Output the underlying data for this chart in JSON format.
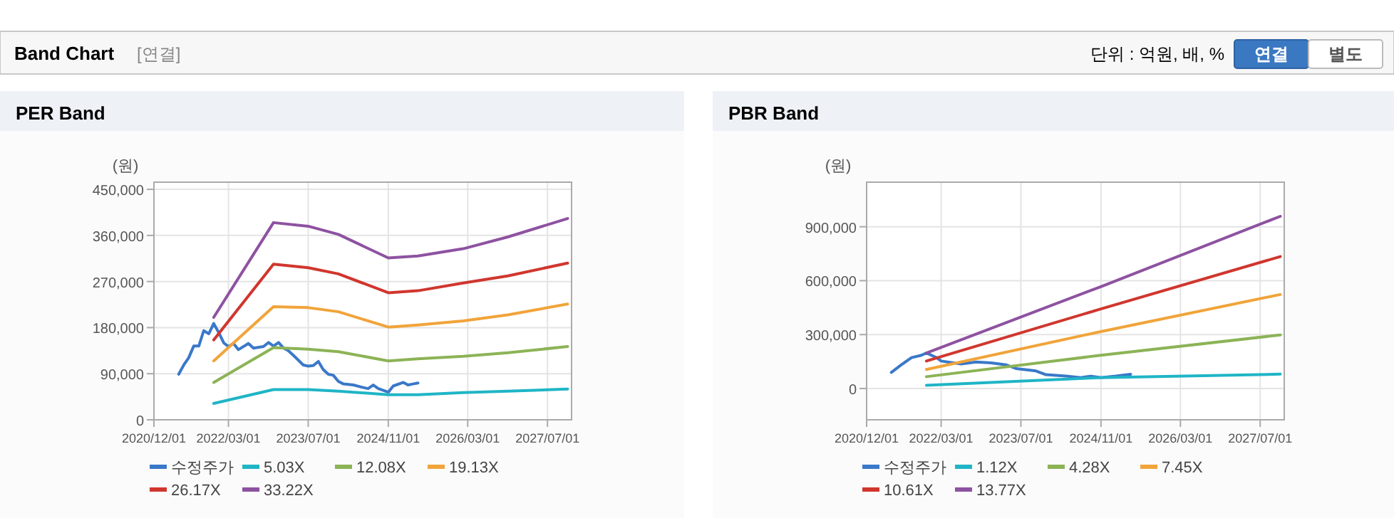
{
  "chart_data": [
    {
      "type": "other",
      "title": "Band Chart",
      "annotations": [
        "[연결]",
        "단위 : 억원, 배, %",
        "연결",
        "별도"
      ]
    },
    {
      "type": "line",
      "title": "PER Band",
      "ylabel": "(원)",
      "grid": true,
      "legend": "bottom",
      "marker": "none",
      "line_style": "solid",
      "xlim": [
        "2020-12-01",
        "2027-11-25"
      ],
      "xticks": [
        {
          "value": "2020-12-01",
          "label": "2020/12/01"
        },
        {
          "value": "2022-03-01",
          "label": "2022/03/01"
        },
        {
          "value": "2023-07-01",
          "label": "2023/07/01"
        },
        {
          "value": "2024-11-01",
          "label": "2024/11/01"
        },
        {
          "value": "2026-03-01",
          "label": "2026/03/01"
        },
        {
          "value": "2027-07-01",
          "label": "2027/07/01"
        }
      ],
      "ylim": [
        0,
        464000
      ],
      "yticks": [
        {
          "value": 0,
          "label": "0"
        },
        {
          "value": 90000,
          "label": "90,000"
        },
        {
          "value": 180000,
          "label": "180,000"
        },
        {
          "value": 270000,
          "label": "270,000"
        },
        {
          "value": 360000,
          "label": "360,000"
        },
        {
          "value": 450000,
          "label": "450,000"
        }
      ],
      "series": [
        {
          "name": "수정주가",
          "color": "#3a78c9",
          "x": [
            "2021-05",
            "2021-06",
            "2021-07",
            "2021-08",
            "2021-09",
            "2021-10",
            "2021-11",
            "2021-12",
            "2022-01",
            "2022-02",
            "2022-03",
            "2022-04",
            "2022-05",
            "2022-07",
            "2022-08",
            "2022-10",
            "2022-11",
            "2022-12",
            "2023-01",
            "2023-02",
            "2023-03",
            "2023-04",
            "2023-06",
            "2023-07",
            "2023-08",
            "2023-09",
            "2023-10",
            "2023-11",
            "2023-12",
            "2024-01",
            "2024-02",
            "2024-04",
            "2024-06",
            "2024-07",
            "2024-08",
            "2024-09",
            "2024-11",
            "2024-12",
            "2025-02",
            "2025-03",
            "2025-04",
            "2025-05"
          ],
          "values": [
            89000,
            107000,
            121000,
            144000,
            144000,
            174000,
            168000,
            188000,
            170000,
            150000,
            143000,
            149000,
            137000,
            149000,
            140000,
            143000,
            151000,
            144000,
            151000,
            140000,
            135000,
            126000,
            107000,
            105000,
            106000,
            114000,
            98000,
            89000,
            87000,
            75000,
            70000,
            68000,
            63000,
            61000,
            68000,
            61000,
            54000,
            66000,
            73000,
            68000,
            70000,
            72000
          ]
        },
        {
          "name": "5.03X",
          "color": "#1fb5c6",
          "x": [
            "2021-12",
            "2022-12",
            "2023-07",
            "2024-01",
            "2024-11",
            "2025-05",
            "2026-02",
            "2026-11",
            "2027-11"
          ],
          "values": [
            32000,
            59000,
            59000,
            56000,
            49000,
            49000,
            53000,
            56000,
            60000
          ]
        },
        {
          "name": "12.08X",
          "color": "#8cb356",
          "x": [
            "2021-12",
            "2022-12",
            "2023-07",
            "2024-01",
            "2024-11",
            "2025-05",
            "2026-02",
            "2026-11",
            "2027-11"
          ],
          "values": [
            73000,
            141000,
            138000,
            133000,
            115000,
            119000,
            124000,
            131000,
            143000
          ]
        },
        {
          "name": "19.13X",
          "color": "#f1a43a",
          "x": [
            "2021-12",
            "2022-12",
            "2023-07",
            "2024-01",
            "2024-11",
            "2025-05",
            "2026-02",
            "2026-11",
            "2027-11"
          ],
          "values": [
            115000,
            221000,
            219000,
            211000,
            181000,
            185000,
            193000,
            205000,
            226000
          ]
        },
        {
          "name": "26.17X",
          "color": "#d0362e",
          "x": [
            "2021-12",
            "2022-12",
            "2023-07",
            "2024-01",
            "2024-11",
            "2025-05",
            "2026-02",
            "2026-11",
            "2027-11"
          ],
          "values": [
            156000,
            304000,
            297000,
            285000,
            248000,
            252000,
            267000,
            281000,
            306000
          ]
        },
        {
          "name": "33.22X",
          "color": "#8e52a1",
          "x": [
            "2021-12",
            "2022-12",
            "2023-07",
            "2024-01",
            "2024-11",
            "2025-05",
            "2026-02",
            "2026-11",
            "2027-11"
          ],
          "values": [
            200000,
            385000,
            378000,
            362000,
            316000,
            320000,
            334000,
            357000,
            393000
          ]
        }
      ]
    },
    {
      "type": "line",
      "title": "PBR Band",
      "ylabel": "(원)",
      "grid": true,
      "legend": "bottom",
      "marker": "none",
      "line_style": "solid",
      "xlim": [
        "2020-12-01",
        "2027-11-25"
      ],
      "xticks": [
        {
          "value": "2020-12-01",
          "label": "2020/12/01"
        },
        {
          "value": "2022-03-01",
          "label": "2022/03/01"
        },
        {
          "value": "2023-07-01",
          "label": "2023/07/01"
        },
        {
          "value": "2024-11-01",
          "label": "2024/11/01"
        },
        {
          "value": "2026-03-01",
          "label": "2026/03/01"
        },
        {
          "value": "2027-07-01",
          "label": "2027/07/01"
        }
      ],
      "ylim": [
        -174000,
        1148000
      ],
      "yticks": [
        {
          "value": 0,
          "label": "0"
        },
        {
          "value": 300000,
          "label": "300,000"
        },
        {
          "value": 600000,
          "label": "600,000"
        },
        {
          "value": 900000,
          "label": "900,000"
        }
      ],
      "series": [
        {
          "name": "수정주가",
          "color": "#3a78c9",
          "x": [
            "2021-05",
            "2021-07",
            "2021-09",
            "2021-11",
            "2021-12",
            "2022-02",
            "2022-03",
            "2022-05",
            "2022-07",
            "2022-10",
            "2023-01",
            "2023-04",
            "2023-06",
            "2023-10",
            "2023-12",
            "2024-04",
            "2024-07",
            "2024-09",
            "2024-11",
            "2025-02",
            "2025-05"
          ],
          "values": [
            90000,
            132000,
            172000,
            185000,
            198000,
            172000,
            153000,
            145000,
            137000,
            148000,
            143000,
            132000,
            111000,
            98000,
            77000,
            69000,
            61000,
            69000,
            61000,
            69000,
            79000
          ]
        },
        {
          "name": "1.12X",
          "color": "#1fb5c6",
          "x": [
            "2021-12",
            "2024-11",
            "2027-11"
          ],
          "values": [
            18000,
            61000,
            80000
          ]
        },
        {
          "name": "4.28X",
          "color": "#8cb356",
          "x": [
            "2021-12",
            "2024-11",
            "2027-11"
          ],
          "values": [
            66000,
            185000,
            298000
          ]
        },
        {
          "name": "7.45X",
          "color": "#f1a43a",
          "x": [
            "2021-12",
            "2024-11",
            "2027-11"
          ],
          "values": [
            106000,
            317000,
            523000
          ]
        },
        {
          "name": "10.61X",
          "color": "#d0362e",
          "x": [
            "2021-12",
            "2024-11",
            "2027-11"
          ],
          "values": [
            153000,
            443000,
            734000
          ]
        },
        {
          "name": "13.77X",
          "color": "#8e52a1",
          "x": [
            "2021-12",
            "2024-11",
            "2027-11"
          ],
          "values": [
            198000,
            567000,
            958000
          ]
        }
      ]
    }
  ]
}
